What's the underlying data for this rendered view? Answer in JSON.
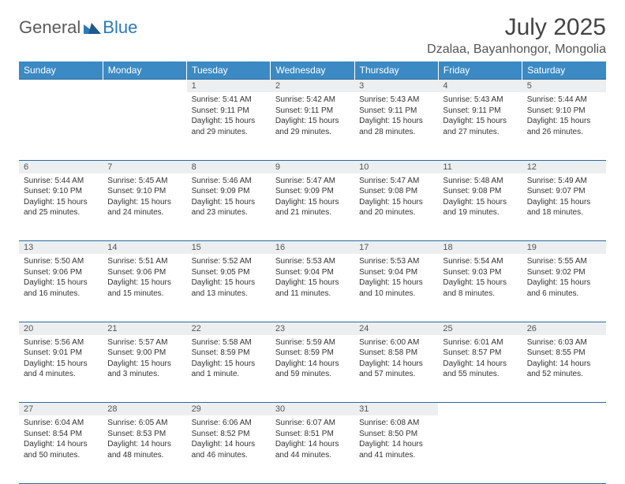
{
  "brand": {
    "name1": "General",
    "name2": "Blue"
  },
  "title": "July 2025",
  "location": "Dzalaa, Bayanhongor, Mongolia",
  "colors": {
    "header_bg": "#3b8ac4",
    "header_text": "#ffffff",
    "daynum_bg": "#eceeef",
    "border": "#2a6aa0",
    "logo_gray": "#5a5a5a",
    "logo_blue": "#2a7ab8"
  },
  "weekdays": [
    "Sunday",
    "Monday",
    "Tuesday",
    "Wednesday",
    "Thursday",
    "Friday",
    "Saturday"
  ],
  "weeks": [
    [
      null,
      null,
      {
        "n": "1",
        "sunrise": "5:41 AM",
        "sunset": "9:11 PM",
        "daylight": "15 hours and 29 minutes."
      },
      {
        "n": "2",
        "sunrise": "5:42 AM",
        "sunset": "9:11 PM",
        "daylight": "15 hours and 29 minutes."
      },
      {
        "n": "3",
        "sunrise": "5:43 AM",
        "sunset": "9:11 PM",
        "daylight": "15 hours and 28 minutes."
      },
      {
        "n": "4",
        "sunrise": "5:43 AM",
        "sunset": "9:11 PM",
        "daylight": "15 hours and 27 minutes."
      },
      {
        "n": "5",
        "sunrise": "5:44 AM",
        "sunset": "9:10 PM",
        "daylight": "15 hours and 26 minutes."
      }
    ],
    [
      {
        "n": "6",
        "sunrise": "5:44 AM",
        "sunset": "9:10 PM",
        "daylight": "15 hours and 25 minutes."
      },
      {
        "n": "7",
        "sunrise": "5:45 AM",
        "sunset": "9:10 PM",
        "daylight": "15 hours and 24 minutes."
      },
      {
        "n": "8",
        "sunrise": "5:46 AM",
        "sunset": "9:09 PM",
        "daylight": "15 hours and 23 minutes."
      },
      {
        "n": "9",
        "sunrise": "5:47 AM",
        "sunset": "9:09 PM",
        "daylight": "15 hours and 21 minutes."
      },
      {
        "n": "10",
        "sunrise": "5:47 AM",
        "sunset": "9:08 PM",
        "daylight": "15 hours and 20 minutes."
      },
      {
        "n": "11",
        "sunrise": "5:48 AM",
        "sunset": "9:08 PM",
        "daylight": "15 hours and 19 minutes."
      },
      {
        "n": "12",
        "sunrise": "5:49 AM",
        "sunset": "9:07 PM",
        "daylight": "15 hours and 18 minutes."
      }
    ],
    [
      {
        "n": "13",
        "sunrise": "5:50 AM",
        "sunset": "9:06 PM",
        "daylight": "15 hours and 16 minutes."
      },
      {
        "n": "14",
        "sunrise": "5:51 AM",
        "sunset": "9:06 PM",
        "daylight": "15 hours and 15 minutes."
      },
      {
        "n": "15",
        "sunrise": "5:52 AM",
        "sunset": "9:05 PM",
        "daylight": "15 hours and 13 minutes."
      },
      {
        "n": "16",
        "sunrise": "5:53 AM",
        "sunset": "9:04 PM",
        "daylight": "15 hours and 11 minutes."
      },
      {
        "n": "17",
        "sunrise": "5:53 AM",
        "sunset": "9:04 PM",
        "daylight": "15 hours and 10 minutes."
      },
      {
        "n": "18",
        "sunrise": "5:54 AM",
        "sunset": "9:03 PM",
        "daylight": "15 hours and 8 minutes."
      },
      {
        "n": "19",
        "sunrise": "5:55 AM",
        "sunset": "9:02 PM",
        "daylight": "15 hours and 6 minutes."
      }
    ],
    [
      {
        "n": "20",
        "sunrise": "5:56 AM",
        "sunset": "9:01 PM",
        "daylight": "15 hours and 4 minutes."
      },
      {
        "n": "21",
        "sunrise": "5:57 AM",
        "sunset": "9:00 PM",
        "daylight": "15 hours and 3 minutes."
      },
      {
        "n": "22",
        "sunrise": "5:58 AM",
        "sunset": "8:59 PM",
        "daylight": "15 hours and 1 minute."
      },
      {
        "n": "23",
        "sunrise": "5:59 AM",
        "sunset": "8:59 PM",
        "daylight": "14 hours and 59 minutes."
      },
      {
        "n": "24",
        "sunrise": "6:00 AM",
        "sunset": "8:58 PM",
        "daylight": "14 hours and 57 minutes."
      },
      {
        "n": "25",
        "sunrise": "6:01 AM",
        "sunset": "8:57 PM",
        "daylight": "14 hours and 55 minutes."
      },
      {
        "n": "26",
        "sunrise": "6:03 AM",
        "sunset": "8:55 PM",
        "daylight": "14 hours and 52 minutes."
      }
    ],
    [
      {
        "n": "27",
        "sunrise": "6:04 AM",
        "sunset": "8:54 PM",
        "daylight": "14 hours and 50 minutes."
      },
      {
        "n": "28",
        "sunrise": "6:05 AM",
        "sunset": "8:53 PM",
        "daylight": "14 hours and 48 minutes."
      },
      {
        "n": "29",
        "sunrise": "6:06 AM",
        "sunset": "8:52 PM",
        "daylight": "14 hours and 46 minutes."
      },
      {
        "n": "30",
        "sunrise": "6:07 AM",
        "sunset": "8:51 PM",
        "daylight": "14 hours and 44 minutes."
      },
      {
        "n": "31",
        "sunrise": "6:08 AM",
        "sunset": "8:50 PM",
        "daylight": "14 hours and 41 minutes."
      },
      null,
      null
    ]
  ],
  "labels": {
    "sunrise": "Sunrise:",
    "sunset": "Sunset:",
    "daylight": "Daylight:"
  }
}
